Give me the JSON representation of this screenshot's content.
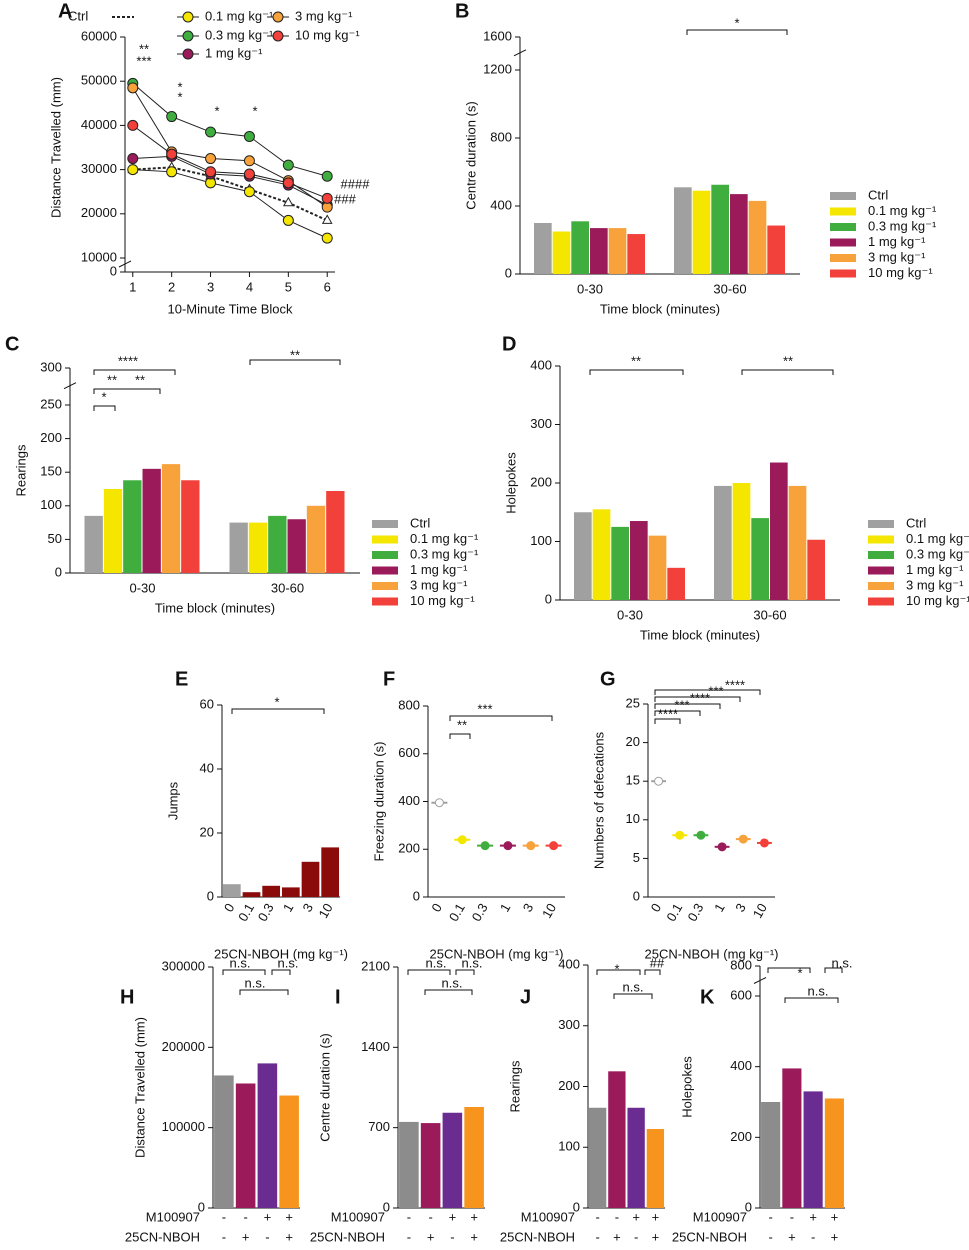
{
  "chart_data": [
    {
      "type": "line",
      "panel": "A",
      "y_label": "Distance Travelled (mm)",
      "x_label": "10-Minute Time Block",
      "xlim": [
        0.8,
        6.2
      ],
      "xticks": [
        1,
        2,
        3,
        4,
        5,
        6
      ],
      "ylim": [
        10000,
        60000
      ],
      "yticks": [
        0,
        10000,
        20000,
        30000,
        40000,
        50000,
        60000
      ],
      "series": [
        {
          "name": "Ctrl",
          "color": "#222222",
          "dashed": true,
          "values": [
            30000,
            30500,
            28500,
            25500,
            22500,
            18500
          ]
        },
        {
          "name": "0.1 mg kg⁻¹",
          "color": "#f5e600",
          "values": [
            30000,
            29500,
            27000,
            25000,
            18500,
            14500
          ]
        },
        {
          "name": "0.3 mg kg⁻¹",
          "color": "#3fae3f",
          "values": [
            49500,
            42000,
            38500,
            37500,
            31000,
            28500
          ]
        },
        {
          "name": "1 mg kg⁻¹",
          "color": "#9b1b5a",
          "values": [
            32500,
            33000,
            29000,
            28500,
            26500,
            22000
          ]
        },
        {
          "name": "3 mg kg⁻¹",
          "color": "#f7a23a",
          "values": [
            48500,
            34000,
            32500,
            32000,
            27500,
            21500
          ]
        },
        {
          "name": "10 mg kg⁻¹",
          "color": "#f2403a",
          "values": [
            40000,
            33500,
            29500,
            29000,
            27000,
            23500
          ]
        }
      ],
      "annotations": [
        "**",
        "***",
        "*",
        "*",
        "*",
        "*",
        "###",
        "####"
      ]
    },
    {
      "type": "bar",
      "panel": "B",
      "y_label": "Centre duration (s)",
      "x_label": "Time block (minutes)",
      "categories": [
        "0-30",
        "30-60"
      ],
      "ylim": [
        0,
        1200
      ],
      "yticks": [
        0,
        400,
        800,
        1200
      ],
      "ybreak_ticks": [
        1600
      ],
      "series": [
        {
          "name": "Ctrl",
          "color": "#a0a0a0",
          "values": [
            300,
            510
          ]
        },
        {
          "name": "0.1 mg kg⁻¹",
          "color": "#f5e600",
          "values": [
            250,
            490
          ]
        },
        {
          "name": "0.3 mg kg⁻¹",
          "color": "#3fae3f",
          "values": [
            310,
            525
          ]
        },
        {
          "name": "1 mg kg⁻¹",
          "color": "#9b1b5a",
          "values": [
            270,
            470
          ]
        },
        {
          "name": "3 mg kg⁻¹",
          "color": "#f7a23a",
          "values": [
            270,
            430
          ]
        },
        {
          "name": "10 mg kg⁻¹",
          "color": "#f2403a",
          "values": [
            235,
            285
          ]
        }
      ],
      "annotations": [
        "*"
      ]
    },
    {
      "type": "bar",
      "panel": "C",
      "y_label": "Rearings",
      "x_label": "Time block (minutes)",
      "categories": [
        "0-30",
        "30-60"
      ],
      "ylim": [
        0,
        250
      ],
      "yticks": [
        0,
        50,
        100,
        150,
        200,
        250
      ],
      "ybreak_ticks": [
        300
      ],
      "series": [
        {
          "name": "Ctrl",
          "color": "#a0a0a0",
          "values": [
            85,
            75
          ]
        },
        {
          "name": "0.1 mg kg⁻¹",
          "color": "#f5e600",
          "values": [
            125,
            75
          ]
        },
        {
          "name": "0.3 mg kg⁻¹",
          "color": "#3fae3f",
          "values": [
            138,
            85
          ]
        },
        {
          "name": "1 mg kg⁻¹",
          "color": "#9b1b5a",
          "values": [
            155,
            80
          ]
        },
        {
          "name": "3 mg kg⁻¹",
          "color": "#f7a23a",
          "values": [
            162,
            100
          ]
        },
        {
          "name": "10 mg kg⁻¹",
          "color": "#f2403a",
          "values": [
            138,
            122
          ]
        }
      ],
      "annotations": [
        "*",
        "**",
        "**",
        "****",
        "**"
      ]
    },
    {
      "type": "bar",
      "panel": "D",
      "y_label": "Holepokes",
      "x_label": "Time block (minutes)",
      "categories": [
        "0-30",
        "30-60"
      ],
      "ylim": [
        0,
        400
      ],
      "yticks": [
        0,
        100,
        200,
        300,
        400
      ],
      "series": [
        {
          "name": "Ctrl",
          "color": "#a0a0a0",
          "values": [
            150,
            195
          ]
        },
        {
          "name": "0.1 mg kg⁻¹",
          "color": "#f5e600",
          "values": [
            155,
            200
          ]
        },
        {
          "name": "0.3 mg kg⁻¹",
          "color": "#3fae3f",
          "values": [
            125,
            140
          ]
        },
        {
          "name": "1 mg kg⁻¹",
          "color": "#9b1b5a",
          "values": [
            135,
            235
          ]
        },
        {
          "name": "3 mg kg⁻¹",
          "color": "#f7a23a",
          "values": [
            110,
            195
          ]
        },
        {
          "name": "10 mg kg⁻¹",
          "color": "#f2403a",
          "values": [
            55,
            103
          ]
        }
      ],
      "annotations": [
        "**",
        "**"
      ]
    },
    {
      "type": "bar",
      "panel": "E",
      "y_label": "Jumps",
      "x_label": "25CN-NBOH (mg kg⁻¹)",
      "categories": [
        "0",
        "0.1",
        "0.3",
        "1",
        "3",
        "10"
      ],
      "values": [
        4,
        1.5,
        3.5,
        3,
        11,
        15.5
      ],
      "colors": [
        "#a0a0a0",
        "#8b0a0a",
        "#8b0a0a",
        "#8b0a0a",
        "#8b0a0a",
        "#8b0a0a"
      ],
      "ylim": [
        0,
        60
      ],
      "yticks": [
        0,
        20,
        40,
        60
      ],
      "annotations": [
        "*"
      ]
    },
    {
      "type": "dot",
      "panel": "F",
      "y_label": "Freezing duration (s)",
      "x_label": "25CN-NBOH (mg kg⁻¹)",
      "categories": [
        "0",
        "0.1",
        "0.3",
        "1",
        "3",
        "10"
      ],
      "values": [
        395,
        240,
        215,
        215,
        215,
        215
      ],
      "colors": [
        "#a0a0a0",
        "#f5e600",
        "#3fae3f",
        "#9b1b5a",
        "#f7a23a",
        "#f2403a"
      ],
      "ylim": [
        0,
        800
      ],
      "yticks": [
        0,
        200,
        400,
        600,
        800
      ],
      "annotations": [
        "**",
        "***"
      ]
    },
    {
      "type": "dot",
      "panel": "G",
      "y_label": "Numbers of defecations",
      "x_label": "25CN-NBOH (mg kg⁻¹)",
      "categories": [
        "0",
        "0.1",
        "0.3",
        "1",
        "3",
        "10"
      ],
      "values": [
        15,
        8,
        8,
        6.5,
        7.5,
        7
      ],
      "colors": [
        "#a0a0a0",
        "#f5e600",
        "#3fae3f",
        "#9b1b5a",
        "#f7a23a",
        "#f2403a"
      ],
      "ylim": [
        0,
        25
      ],
      "yticks": [
        0,
        5,
        10,
        15,
        20,
        25
      ],
      "annotations": [
        "****",
        "***",
        "****",
        "***",
        "****"
      ]
    },
    {
      "type": "bar",
      "panel": "H",
      "y_label": "Distance Travelled (mm)",
      "values": [
        165000,
        155000,
        180000,
        140000
      ],
      "colors": [
        "#8c8c8c",
        "#9b1b5a",
        "#6a2c91",
        "#f7941d"
      ],
      "ylim": [
        0,
        300000
      ],
      "yticks": [
        0,
        100000,
        200000,
        300000
      ],
      "treatments": [
        {
          "name": "M100907",
          "values": [
            "-",
            "-",
            "+",
            "+"
          ]
        },
        {
          "name": "25CN-NBOH",
          "values": [
            "-",
            "+",
            "-",
            "+"
          ]
        }
      ],
      "annotations": [
        "n.s.",
        "n.s.",
        "n.s."
      ]
    },
    {
      "type": "bar",
      "panel": "I",
      "y_label": "Centre duration (s)",
      "values": [
        750,
        740,
        830,
        880
      ],
      "colors": [
        "#8c8c8c",
        "#9b1b5a",
        "#6a2c91",
        "#f7941d"
      ],
      "ylim": [
        0,
        2100
      ],
      "yticks": [
        0,
        700,
        1400,
        2100
      ],
      "treatments": [
        {
          "name": "M100907",
          "values": [
            "-",
            "-",
            "+",
            "+"
          ]
        },
        {
          "name": "25CN-NBOH",
          "values": [
            "-",
            "+",
            "-",
            "+"
          ]
        }
      ],
      "annotations": [
        "n.s.",
        "n.s.",
        "n.s."
      ]
    },
    {
      "type": "bar",
      "panel": "J",
      "y_label": "Rearings",
      "values": [
        165,
        225,
        165,
        130
      ],
      "colors": [
        "#8c8c8c",
        "#9b1b5a",
        "#6a2c91",
        "#f7941d"
      ],
      "ylim": [
        0,
        400
      ],
      "yticks": [
        0,
        100,
        200,
        300,
        400
      ],
      "treatments": [
        {
          "name": "M100907",
          "values": [
            "-",
            "-",
            "+",
            "+"
          ]
        },
        {
          "name": "25CN-NBOH",
          "values": [
            "-",
            "+",
            "-",
            "+"
          ]
        }
      ],
      "annotations": [
        "*",
        "n.s.",
        "##"
      ]
    },
    {
      "type": "bar",
      "panel": "K",
      "y_label": "Holepokes",
      "values": [
        300,
        395,
        330,
        310
      ],
      "colors": [
        "#8c8c8c",
        "#9b1b5a",
        "#6a2c91",
        "#f7941d"
      ],
      "ylim": [
        0,
        600
      ],
      "yticks": [
        0,
        200,
        400,
        600
      ],
      "ybreak_ticks": [
        800
      ],
      "treatments": [
        {
          "name": "M100907",
          "values": [
            "-",
            "-",
            "+",
            "+"
          ]
        },
        {
          "name": "25CN-NBOH",
          "values": [
            "-",
            "+",
            "-",
            "+"
          ]
        }
      ],
      "annotations": [
        "*",
        "n.s.",
        "n.s."
      ]
    }
  ]
}
